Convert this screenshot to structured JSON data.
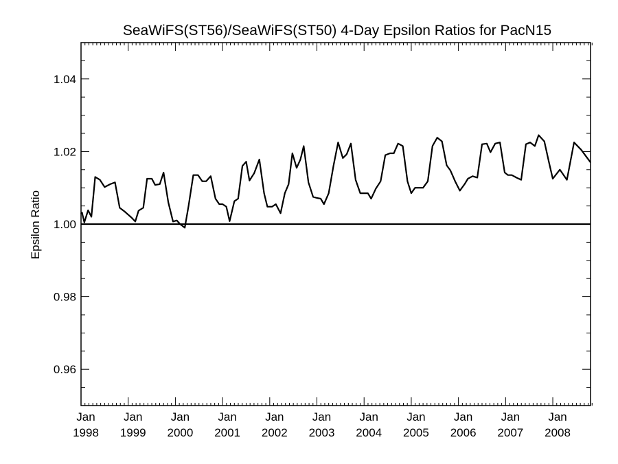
{
  "chart_data": {
    "type": "line",
    "title": "SeaWiFS(ST56)/SeaWiFS(ST50) 4-Day Epsilon Ratios for PacN15",
    "xlabel": "",
    "ylabel": "Epsilon Ratio",
    "xlim": [
      1998.0,
      2008.8
    ],
    "ylim": [
      0.95,
      1.05
    ],
    "y_ticks": [
      0.96,
      0.98,
      1.0,
      1.02,
      1.04
    ],
    "y_tick_labels": [
      "0.96",
      "0.98",
      "1.00",
      "1.02",
      "1.04"
    ],
    "x_ticks": [
      1998,
      1999,
      2000,
      2001,
      2002,
      2003,
      2004,
      2005,
      2006,
      2007,
      2008
    ],
    "x_tick_labels": [
      {
        "month": "Jan",
        "year": "1998"
      },
      {
        "month": "Jan",
        "year": "1999"
      },
      {
        "month": "Jan",
        "year": "2000"
      },
      {
        "month": "Jan",
        "year": "2001"
      },
      {
        "month": "Jan",
        "year": "2002"
      },
      {
        "month": "Jan",
        "year": "2003"
      },
      {
        "month": "Jan",
        "year": "2004"
      },
      {
        "month": "Jan",
        "year": "2005"
      },
      {
        "month": "Jan",
        "year": "2006"
      },
      {
        "month": "Jan",
        "year": "2007"
      },
      {
        "month": "Jan",
        "year": "2008"
      }
    ],
    "reference_line": 1.0,
    "grid": false,
    "series": [
      {
        "x": [
          1997.92,
          1998.02,
          1998.07,
          1998.15,
          1998.22,
          1998.3,
          1998.4,
          1998.5,
          1998.62,
          1998.72,
          1998.82,
          1998.92,
          1999.0,
          1999.07,
          1999.15,
          1999.22,
          1999.32,
          1999.4,
          1999.5,
          1999.57,
          1999.67,
          1999.75,
          1999.85,
          1999.95,
          2000.03,
          2000.1,
          2000.2,
          2000.28,
          2000.38,
          2000.48,
          2000.57,
          2000.65,
          2000.75,
          2000.85,
          2000.93,
          2001.0,
          2001.08,
          2001.15,
          2001.25,
          2001.33,
          2001.42,
          2001.5,
          2001.57,
          2001.67,
          2001.78,
          2001.88,
          2001.95,
          2002.05,
          2002.13,
          2002.23,
          2002.32,
          2002.4,
          2002.48,
          2002.57,
          2002.65,
          2002.72,
          2002.82,
          2002.92,
          2003.0,
          2003.08,
          2003.15,
          2003.25,
          2003.35,
          2003.45,
          2003.55,
          2003.63,
          2003.72,
          2003.82,
          2003.92,
          2004.0,
          2004.08,
          2004.15,
          2004.25,
          2004.35,
          2004.45,
          2004.55,
          2004.63,
          2004.72,
          2004.82,
          2004.92,
          2005.0,
          2005.08,
          2005.15,
          2005.25,
          2005.35,
          2005.45,
          2005.55,
          2005.65,
          2005.75,
          2005.83,
          2005.93,
          2006.03,
          2006.13,
          2006.2,
          2006.3,
          2006.4,
          2006.5,
          2006.6,
          2006.68,
          2006.78,
          2006.88,
          2006.98,
          2007.05,
          2007.13,
          2007.23,
          2007.33,
          2007.43,
          2007.52,
          2007.62,
          2007.7,
          2007.82,
          2007.92,
          2008.0,
          2008.15,
          2008.3,
          2008.45,
          2008.6,
          2008.8
        ],
        "values": [
          1.0028,
          1.0032,
          1.0005,
          1.0038,
          1.002,
          1.013,
          1.0122,
          1.0102,
          1.011,
          1.0115,
          1.0045,
          1.0035,
          1.0026,
          1.0018,
          1.0007,
          1.0037,
          1.0045,
          1.0125,
          1.0125,
          1.0108,
          1.011,
          1.0142,
          1.006,
          1.0007,
          1.001,
          1.0,
          0.999,
          1.005,
          1.0135,
          1.0135,
          1.0118,
          1.0118,
          1.0132,
          1.007,
          1.0055,
          1.0055,
          1.0048,
          1.0008,
          1.0063,
          1.007,
          1.016,
          1.0172,
          1.012,
          1.014,
          1.0178,
          1.0085,
          1.0048,
          1.0048,
          1.0055,
          1.003,
          1.0085,
          1.011,
          1.0195,
          1.0155,
          1.0178,
          1.0215,
          1.0115,
          1.0075,
          1.0072,
          1.007,
          1.0055,
          1.0085,
          1.016,
          1.0225,
          1.0182,
          1.0192,
          1.0222,
          1.0122,
          1.0085,
          1.0085,
          1.0085,
          1.007,
          1.0098,
          1.0118,
          1.019,
          1.0195,
          1.0195,
          1.0222,
          1.0215,
          1.0118,
          1.0085,
          1.01,
          1.01,
          1.01,
          1.0118,
          1.0215,
          1.0238,
          1.0228,
          1.0162,
          1.0148,
          1.0118,
          1.0092,
          1.011,
          1.0125,
          1.0132,
          1.0128,
          1.022,
          1.0222,
          1.0198,
          1.0222,
          1.0225,
          1.0142,
          1.0135,
          1.0135,
          1.0128,
          1.0122,
          1.022,
          1.0225,
          1.0215,
          1.0245,
          1.0228,
          1.017,
          1.0125,
          1.015,
          1.0122,
          1.0225,
          1.0205,
          1.017
        ]
      }
    ]
  }
}
